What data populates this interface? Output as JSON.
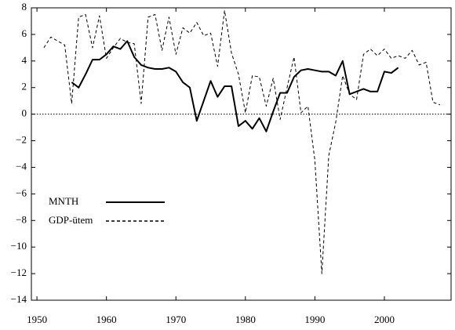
{
  "chart_data": {
    "type": "line",
    "x": [
      1951,
      1952,
      1953,
      1954,
      1955,
      1956,
      1957,
      1958,
      1959,
      1960,
      1961,
      1962,
      1963,
      1964,
      1965,
      1966,
      1967,
      1968,
      1969,
      1970,
      1971,
      1972,
      1973,
      1974,
      1975,
      1976,
      1977,
      1978,
      1979,
      1980,
      1981,
      1982,
      1983,
      1984,
      1985,
      1986,
      1987,
      1988,
      1989,
      1990,
      1991,
      1992,
      1993,
      1994,
      1995,
      1996,
      1997,
      1998,
      1999,
      2000,
      2001,
      2002,
      2003,
      2004,
      2005,
      2006,
      2007,
      2008
    ],
    "series": [
      {
        "name": "MNTH",
        "color": "#000000",
        "dash": "solid",
        "values": [
          null,
          null,
          null,
          null,
          2.4,
          2.0,
          3.0,
          4.1,
          4.1,
          4.5,
          5.1,
          4.9,
          5.5,
          4.3,
          3.7,
          3.5,
          3.4,
          3.4,
          3.5,
          3.2,
          2.4,
          2.0,
          -0.5,
          1.0,
          2.5,
          1.3,
          2.1,
          2.1,
          -0.9,
          -0.5,
          -1.1,
          -0.3,
          -1.3,
          0.2,
          1.6,
          1.6,
          2.8,
          3.3,
          3.4,
          3.3,
          3.2,
          3.2,
          2.9,
          4.0,
          1.5,
          1.7,
          1.9,
          1.7,
          1.7,
          3.2,
          3.1,
          3.5,
          null,
          null,
          null,
          null,
          null,
          null
        ]
      },
      {
        "name": "GDP-ütem",
        "color": "#000000",
        "dash": "dashed",
        "values": [
          5.0,
          5.8,
          5.5,
          5.2,
          0.8,
          7.3,
          7.5,
          5.0,
          7.4,
          4.2,
          5.0,
          5.7,
          5.4,
          5.3,
          0.8,
          7.3,
          7.5,
          4.8,
          7.3,
          4.5,
          6.5,
          6.1,
          6.9,
          5.9,
          6.1,
          3.6,
          7.8,
          4.6,
          3.0,
          0.1,
          2.9,
          2.8,
          0.6,
          2.7,
          -0.4,
          2.0,
          4.3,
          0.1,
          0.6,
          -3.5,
          -12.0,
          -3.1,
          -0.6,
          2.9,
          1.5,
          1.1,
          4.5,
          4.9,
          4.4,
          4.9,
          4.2,
          4.4,
          4.2,
          4.8,
          3.7,
          3.9,
          0.9,
          0.7
        ]
      }
    ],
    "xlim": [
      1949.2,
      2009.6
    ],
    "ylim": [
      -14,
      8
    ],
    "xticks": [
      1950,
      1960,
      1970,
      1980,
      1990,
      2000
    ],
    "yticks": [
      {
        "value": -14,
        "label": "−14"
      },
      {
        "value": -12,
        "label": "−12"
      },
      {
        "value": -10,
        "label": "−10"
      },
      {
        "value": -8,
        "label": "−8"
      },
      {
        "value": -6,
        "label": "−6"
      },
      {
        "value": -4,
        "label": "−4"
      },
      {
        "value": -2,
        "label": "−2"
      },
      0,
      2,
      4,
      6,
      8
    ],
    "zero_line": true,
    "legend": "center-left"
  }
}
